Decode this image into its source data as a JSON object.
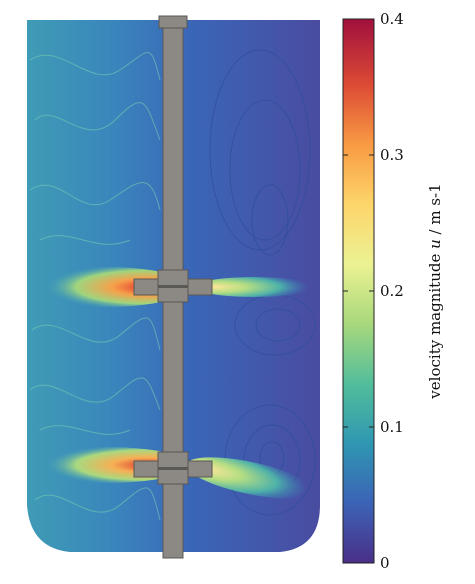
{
  "colorbar": {
    "label_prefix": "velocity magnitude ",
    "label_symbol": "u",
    "label_suffix": " / m s-1",
    "ticks": [
      "0",
      "0.1",
      "0.2",
      "0.3",
      "0.4"
    ],
    "min": 0,
    "max": 0.4,
    "colors": [
      "#4a2f88",
      "#3b63b6",
      "#2f97b2",
      "#53be9b",
      "#a8d87c",
      "#ecf293",
      "#fdd56a",
      "#f89a43",
      "#dc4a35",
      "#a0103d"
    ]
  },
  "scene_colors": {
    "background_blue": "#3d69bb",
    "flow_teal": "#3fa3b5",
    "shaft_gray": "#8c8984",
    "shaft_outline": "#5a5855",
    "jet_hot": "#d9362f",
    "jet_warm": "#f3b25a"
  }
}
